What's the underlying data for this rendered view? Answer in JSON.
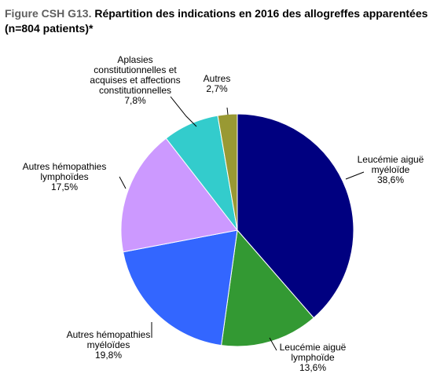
{
  "title": {
    "prefix": "Figure CSH G13.",
    "text": " Répartition des indications en 2016 des allogreffes apparentées",
    "line2": "(n=804 patients)*"
  },
  "chart_data": {
    "type": "pie",
    "slices": [
      {
        "label_lines": [
          "Leucémie aiguë",
          "myéloïde"
        ],
        "value": 38.6,
        "value_label": "38,6%",
        "color": "#000080"
      },
      {
        "label_lines": [
          "Leucémie aiguë",
          "lymphoïde"
        ],
        "value": 13.6,
        "value_label": "13,6%",
        "color": "#339933"
      },
      {
        "label_lines": [
          "Autres hémopathies",
          "myéloïdes"
        ],
        "value": 19.8,
        "value_label": "19,8%",
        "color": "#3366ff"
      },
      {
        "label_lines": [
          "Autres hémopathies",
          "lymphoïdes"
        ],
        "value": 17.5,
        "value_label": "17,5%",
        "color": "#cc99ff"
      },
      {
        "label_lines": [
          "Aplasies",
          "constitutionnelles et",
          "acquises et affections",
          "constitutionnelles"
        ],
        "value": 7.8,
        "value_label": "7,8%",
        "color": "#33cccc"
      },
      {
        "label_lines": [
          "Autres"
        ],
        "value": 2.7,
        "value_label": "2,7%",
        "color": "#999933"
      }
    ]
  }
}
